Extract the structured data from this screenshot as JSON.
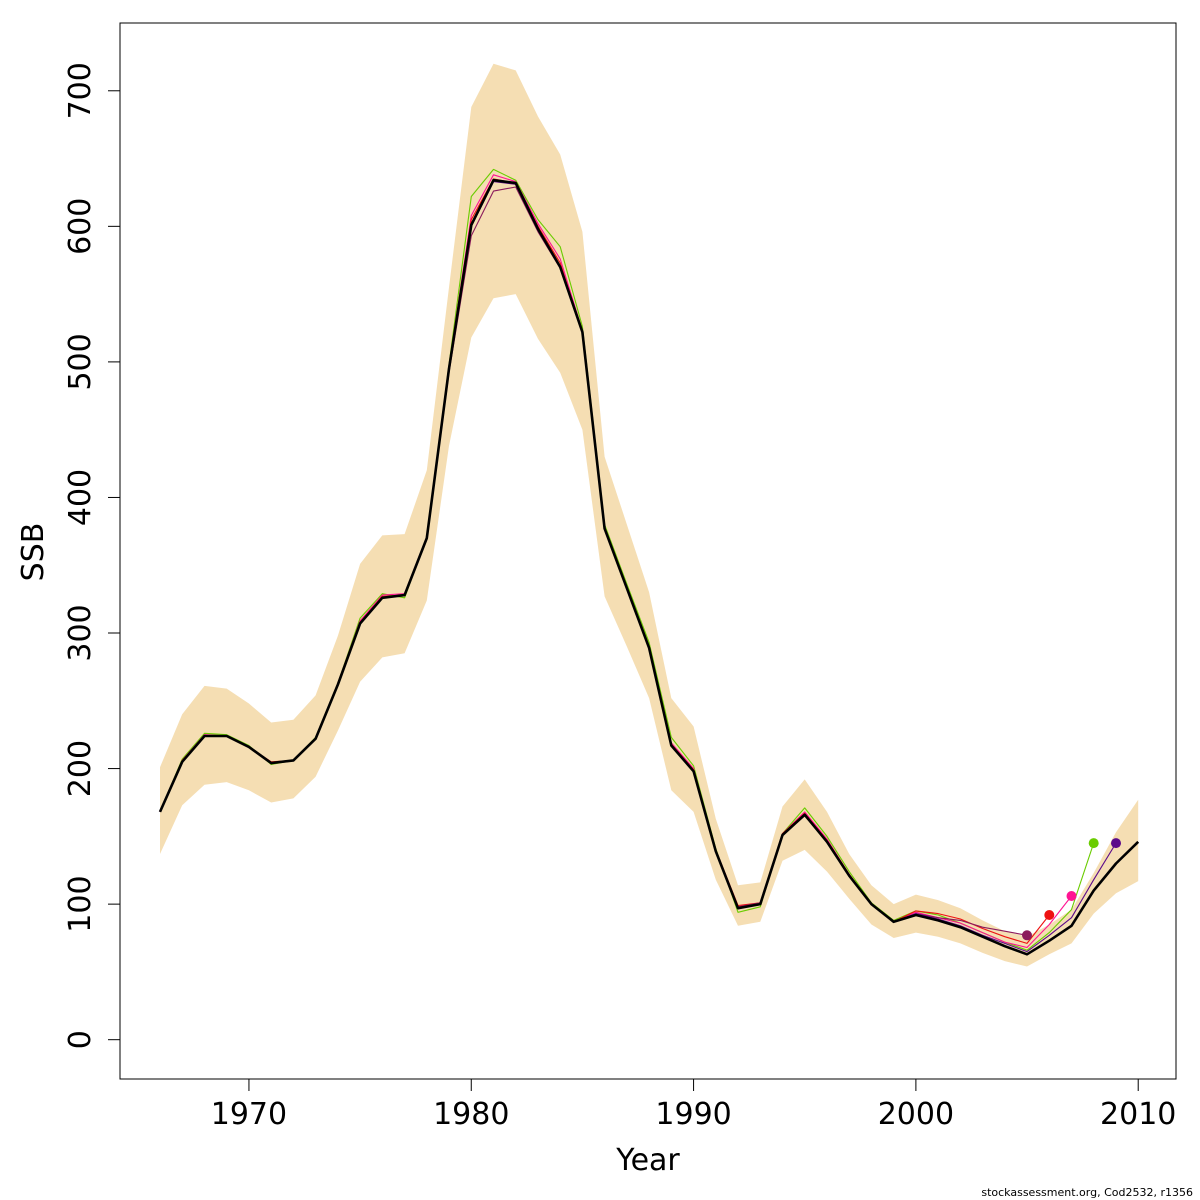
{
  "chart_data": {
    "type": "line",
    "xlabel": "Year",
    "ylabel": "SSB",
    "xlim": [
      1964.2,
      2011.7
    ],
    "ylim": [
      -29,
      750
    ],
    "x_ticks": [
      1970,
      1980,
      1990,
      2000,
      2010
    ],
    "y_ticks": [
      0,
      100,
      200,
      300,
      400,
      500,
      600,
      700
    ],
    "grid": false,
    "legend": "none",
    "colors": {
      "band": "#f5deb3",
      "main": "#000000"
    },
    "band": {
      "name": "",
      "x": [
        1966,
        1967,
        1968,
        1969,
        1970,
        1971,
        1972,
        1973,
        1974,
        1975,
        1976,
        1977,
        1978,
        1979,
        1980,
        1981,
        1982,
        1983,
        1984,
        1985,
        1986,
        1987,
        1988,
        1989,
        1990,
        1991,
        1992,
        1993,
        1994,
        1995,
        1996,
        1997,
        1998,
        1999,
        2000,
        2001,
        2002,
        2003,
        2004,
        2005,
        2006,
        2007,
        2008,
        2009,
        2010
      ],
      "upper": [
        201,
        240,
        261,
        259,
        248,
        234,
        236,
        254,
        298,
        351,
        372,
        373,
        420,
        555,
        688,
        720,
        715,
        681,
        653,
        596,
        430,
        380,
        330,
        252,
        231,
        163,
        114,
        116,
        172,
        192,
        168,
        137,
        114,
        100,
        107,
        103,
        97,
        88,
        80,
        76,
        85,
        96,
        123,
        153,
        177
      ],
      "lower": [
        137,
        173,
        188,
        190,
        184,
        175,
        178,
        194,
        228,
        264,
        282,
        285,
        324,
        438,
        518,
        547,
        550,
        517,
        492,
        450,
        327,
        290,
        252,
        184,
        168,
        118,
        84,
        87,
        132,
        140,
        124,
        104,
        85,
        75,
        79,
        76,
        71,
        64,
        58,
        54,
        63,
        71,
        93,
        108,
        117
      ]
    },
    "series": [
      {
        "name": "",
        "color": "#000000",
        "x": [
          1966,
          1967,
          1968,
          1969,
          1970,
          1971,
          1972,
          1973,
          1974,
          1975,
          1976,
          1977,
          1978,
          1979,
          1980,
          1981,
          1982,
          1983,
          1984,
          1985,
          1986,
          1987,
          1988,
          1989,
          1990,
          1991,
          1992,
          1993,
          1994,
          1995,
          1996,
          1997,
          1998,
          1999,
          2000,
          2001,
          2002,
          2003,
          2004,
          2005,
          2006,
          2007,
          2008,
          2009,
          2010
        ],
        "values": [
          168,
          205,
          224,
          224,
          216,
          204,
          206,
          222,
          262,
          307,
          326,
          328,
          370,
          495,
          601,
          634,
          632,
          598,
          570,
          522,
          377,
          333,
          289,
          217,
          198,
          139,
          97,
          100,
          151,
          166,
          146,
          121,
          100,
          87,
          92,
          88,
          83,
          76,
          69,
          63,
          73,
          84,
          110,
          130,
          146
        ]
      },
      {
        "name": "",
        "color": "#6acc00",
        "x": [
          1966,
          1967,
          1968,
          1969,
          1970,
          1971,
          1972,
          1973,
          1974,
          1975,
          1976,
          1977,
          1978,
          1979,
          1980,
          1981,
          1982,
          1983,
          1984,
          1985,
          1986,
          1987,
          1988,
          1989,
          1990,
          1991,
          1992,
          1993,
          1994,
          1995,
          1996,
          1997,
          1998,
          1999,
          2000,
          2001,
          2002,
          2003,
          2004,
          2005,
          2006,
          2007,
          2008
        ],
        "values": [
          168,
          207,
          226,
          225,
          217,
          203,
          206,
          223,
          263,
          311,
          329,
          326,
          371,
          498,
          622,
          642,
          634,
          605,
          585,
          526,
          380,
          336,
          293,
          223,
          202,
          141,
          94,
          98,
          152,
          171,
          150,
          124,
          101,
          88,
          95,
          92,
          86,
          79,
          72,
          66,
          79,
          96,
          145
        ]
      },
      {
        "name": "",
        "color": "#ff1493",
        "x": [
          1966,
          1967,
          1968,
          1969,
          1970,
          1971,
          1972,
          1973,
          1974,
          1975,
          1976,
          1977,
          1978,
          1979,
          1980,
          1981,
          1982,
          1983,
          1984,
          1985,
          1986,
          1987,
          1988,
          1989,
          1990,
          1991,
          1992,
          1993,
          1994,
          1995,
          1996,
          1997,
          1998,
          1999,
          2000,
          2001,
          2002,
          2003,
          2004,
          2005,
          2006,
          2007
        ],
        "values": [
          168,
          206,
          225,
          224,
          216,
          204,
          206,
          222,
          263,
          309,
          328,
          329,
          371,
          497,
          608,
          638,
          633,
          602,
          576,
          523,
          378,
          334,
          290,
          219,
          200,
          140,
          98,
          101,
          152,
          168,
          148,
          122,
          100,
          87,
          94,
          90,
          86,
          79,
          72,
          68,
          85,
          106
        ]
      },
      {
        "name": "",
        "color": "#ee1111",
        "x": [
          1966,
          1967,
          1968,
          1969,
          1970,
          1971,
          1972,
          1973,
          1974,
          1975,
          1976,
          1977,
          1978,
          1979,
          1980,
          1981,
          1982,
          1983,
          1984,
          1985,
          1986,
          1987,
          1988,
          1989,
          1990,
          1991,
          1992,
          1993,
          1994,
          1995,
          1996,
          1997,
          1998,
          1999,
          2000,
          2001,
          2002,
          2003,
          2004,
          2005,
          2006
        ],
        "values": [
          168,
          206,
          224,
          224,
          216,
          205,
          206,
          222,
          263,
          308,
          327,
          328,
          370,
          496,
          605,
          635,
          632,
          600,
          573,
          522,
          378,
          334,
          290,
          218,
          199,
          140,
          99,
          101,
          152,
          167,
          147,
          122,
          100,
          87,
          95,
          93,
          89,
          82,
          76,
          71,
          92
        ]
      },
      {
        "name": "",
        "color": "#8b1a5c",
        "x": [
          1966,
          1967,
          1968,
          1969,
          1970,
          1971,
          1972,
          1973,
          1974,
          1975,
          1976,
          1977,
          1978,
          1979,
          1980,
          1981,
          1982,
          1983,
          1984,
          1985,
          1986,
          1987,
          1988,
          1989,
          1990,
          1991,
          1992,
          1993,
          1994,
          1995,
          1996,
          1997,
          1998,
          1999,
          2000,
          2001,
          2002,
          2003,
          2004,
          2005
        ],
        "values": [
          168,
          205,
          224,
          224,
          216,
          204,
          206,
          222,
          262,
          307,
          326,
          328,
          369,
          492,
          593,
          626,
          629,
          596,
          569,
          521,
          378,
          333,
          289,
          217,
          198,
          139,
          98,
          101,
          151,
          165,
          146,
          121,
          100,
          87,
          93,
          90,
          88,
          83,
          80,
          77
        ]
      },
      {
        "name": "",
        "color": "#5b0a8a",
        "x": [
          1966,
          1967,
          1968,
          1969,
          1970,
          1971,
          1972,
          1973,
          1974,
          1975,
          1976,
          1977,
          1978,
          1979,
          1980,
          1981,
          1982,
          1983,
          1984,
          1985,
          1986,
          1987,
          1988,
          1989,
          1990,
          1991,
          1992,
          1993,
          1994,
          1995,
          1996,
          1997,
          1998,
          1999,
          2000,
          2001,
          2002,
          2003,
          2004,
          2005,
          2006,
          2007,
          2008,
          2009
        ],
        "values": [
          168,
          205,
          224,
          224,
          216,
          204,
          206,
          222,
          262,
          307,
          326,
          328,
          370,
          495,
          600,
          633,
          631,
          597,
          570,
          522,
          377,
          333,
          289,
          217,
          198,
          139,
          97,
          100,
          151,
          166,
          146,
          121,
          100,
          87,
          93,
          89,
          84,
          77,
          71,
          65,
          77,
          90,
          118,
          145
        ]
      }
    ],
    "endpoints": [
      {
        "x": 2005,
        "y": 77,
        "color": "#8b1a5c"
      },
      {
        "x": 2006,
        "y": 92,
        "color": "#ee1111"
      },
      {
        "x": 2007,
        "y": 106,
        "color": "#ff1493"
      },
      {
        "x": 2008,
        "y": 145,
        "color": "#6acc00"
      },
      {
        "x": 2009,
        "y": 145,
        "color": "#5b0a8a"
      }
    ]
  },
  "credit": "stockassessment.org, Cod2532, r1356"
}
